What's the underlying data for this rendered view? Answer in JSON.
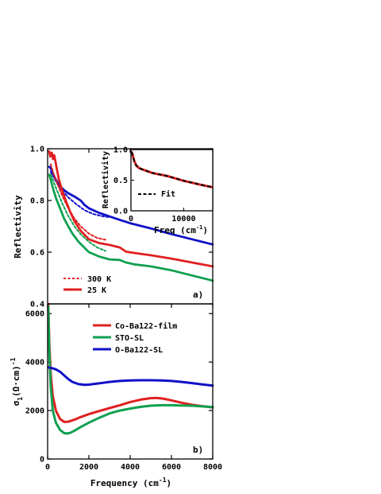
{
  "chart_data": [
    {
      "type": "line",
      "panel_label": "a)",
      "ylabel": "Reflectivity",
      "ylim": [
        0.4,
        1.0
      ],
      "yticks": [
        0.4,
        0.6,
        0.8,
        1.0
      ],
      "ytick_labels": [
        "0.4",
        "0.6",
        "0.8",
        "1.0"
      ],
      "xlim": [
        0,
        8000
      ],
      "legend": {
        "placement": "bottom-left",
        "entries": [
          "300 K",
          "25 K"
        ]
      },
      "series": [
        {
          "color": "#1010c8",
          "style": "solid",
          "temperature": "25 K",
          "x": [
            80,
            150,
            250,
            400,
            600,
            800,
            1000,
            1300,
            1600,
            1800,
            2000,
            2500,
            3000,
            3500,
            4000,
            5000,
            6000,
            7000,
            8000
          ],
          "y": [
            0.93,
            0.925,
            0.905,
            0.88,
            0.855,
            0.84,
            0.828,
            0.815,
            0.8,
            0.782,
            0.77,
            0.752,
            0.738,
            0.725,
            0.712,
            0.692,
            0.67,
            0.65,
            0.63
          ]
        },
        {
          "color": "#1010c8",
          "style": "dashed",
          "temperature": "300 K",
          "x": [
            150,
            300,
            500,
            700,
            1000,
            1400,
            1800,
            2200,
            2600,
            3000
          ],
          "y": [
            0.91,
            0.89,
            0.86,
            0.84,
            0.812,
            0.785,
            0.762,
            0.748,
            0.74,
            0.735
          ]
        },
        {
          "color": "#e02020",
          "style": "solid",
          "temperature": "25 K",
          "x": [
            80,
            130,
            200,
            260,
            320,
            380,
            450,
            550,
            700,
            900,
            1100,
            1300,
            1600,
            2000,
            2500,
            3000,
            3500,
            3800,
            4200,
            5000,
            6000,
            7000,
            8000
          ],
          "y": [
            0.99,
            0.97,
            0.985,
            0.96,
            0.975,
            0.95,
            0.92,
            0.88,
            0.84,
            0.795,
            0.755,
            0.72,
            0.683,
            0.65,
            0.635,
            0.628,
            0.618,
            0.602,
            0.597,
            0.588,
            0.575,
            0.56,
            0.545
          ]
        },
        {
          "color": "#e02020",
          "style": "dashed",
          "temperature": "300 K",
          "x": [
            150,
            300,
            500,
            700,
            1000,
            1300,
            1600,
            2000,
            2400,
            2800
          ],
          "y": [
            0.94,
            0.9,
            0.86,
            0.82,
            0.77,
            0.73,
            0.7,
            0.672,
            0.655,
            0.648
          ]
        },
        {
          "color": "#10a050",
          "style": "solid",
          "temperature": "25 K",
          "x": [
            80,
            150,
            250,
            400,
            600,
            800,
            1000,
            1200,
            1500,
            2000,
            2500,
            3000,
            3500,
            3800,
            4200,
            5000,
            6000,
            7000,
            8000
          ],
          "y": [
            0.9,
            0.88,
            0.85,
            0.81,
            0.77,
            0.73,
            0.7,
            0.672,
            0.64,
            0.6,
            0.583,
            0.572,
            0.57,
            0.56,
            0.553,
            0.545,
            0.53,
            0.51,
            0.49
          ]
        },
        {
          "color": "#10a050",
          "style": "dashed",
          "temperature": "300 K",
          "x": [
            150,
            300,
            500,
            700,
            1000,
            1300,
            1600,
            2000,
            2400,
            2800
          ],
          "y": [
            0.9,
            0.87,
            0.83,
            0.79,
            0.74,
            0.7,
            0.67,
            0.64,
            0.618,
            0.605
          ]
        }
      ]
    },
    {
      "type": "line",
      "inset": true,
      "ylabel": "Reflectivity",
      "xlabel_text": "Freq (cm",
      "xlabel_sup": "-1",
      "xlabel_close": ")",
      "xlim": [
        0,
        15500
      ],
      "ylim": [
        0.0,
        1.0
      ],
      "xticks": [
        0,
        10000
      ],
      "xtick_labels": [
        "0",
        "10000"
      ],
      "yticks": [
        0.0,
        0.5,
        1.0
      ],
      "ytick_labels": [
        "0.0",
        "0.5",
        "1.0"
      ],
      "legend": {
        "placement": "lower-left",
        "entries": [
          "Fit"
        ]
      },
      "series": [
        {
          "color": "#e02020",
          "style": "solid",
          "x": [
            100,
            300,
            600,
            1000,
            1500,
            2000,
            3000,
            4000,
            5000,
            6000,
            7000,
            8000,
            9000,
            10000,
            11000,
            12000,
            13000,
            14000,
            15500
          ],
          "y": [
            0.97,
            0.92,
            0.82,
            0.74,
            0.7,
            0.68,
            0.65,
            0.62,
            0.6,
            0.585,
            0.565,
            0.54,
            0.515,
            0.49,
            0.47,
            0.45,
            0.43,
            0.41,
            0.385
          ]
        },
        {
          "color": "#000000",
          "style": "dashed",
          "name": "Fit",
          "x": [
            100,
            300,
            600,
            1000,
            1500,
            2000,
            3000,
            4000,
            5000,
            6000,
            7000,
            8000,
            9000,
            10000,
            11000,
            12000,
            13000,
            14000,
            15500
          ],
          "y": [
            0.965,
            0.915,
            0.815,
            0.74,
            0.7,
            0.68,
            0.65,
            0.62,
            0.6,
            0.585,
            0.565,
            0.54,
            0.515,
            0.49,
            0.47,
            0.45,
            0.43,
            0.41,
            0.385
          ]
        }
      ]
    },
    {
      "type": "line",
      "panel_label": "b)",
      "ylabel_main": "σ",
      "ylabel_sub": "1",
      "ylabel_unit": "(Ω·cm)",
      "ylabel_exp": "-1",
      "xlabel_text": "Frequency (cm",
      "xlabel_sup": "-1",
      "xlabel_close": ")",
      "xlim": [
        0,
        8000
      ],
      "ylim": [
        0,
        6400
      ],
      "xticks": [
        0,
        2000,
        4000,
        6000,
        8000
      ],
      "xtick_labels": [
        "0",
        "2000",
        "4000",
        "6000",
        "8000"
      ],
      "yticks": [
        0,
        2000,
        4000,
        6000
      ],
      "ytick_labels": [
        "0",
        "2000",
        "4000",
        "6000"
      ],
      "legend": {
        "placement": "top-center"
      },
      "series": [
        {
          "name": "Co-Ba122-film",
          "color": "#e02020",
          "x": [
            30,
            80,
            150,
            250,
            400,
            600,
            800,
            1000,
            1300,
            1600,
            2000,
            2500,
            3000,
            3500,
            4000,
            4500,
            5000,
            5300,
            5600,
            6000,
            6500,
            7000,
            7500,
            8000
          ],
          "y": [
            6400,
            4800,
            3500,
            2600,
            2000,
            1650,
            1530,
            1540,
            1620,
            1730,
            1850,
            1980,
            2100,
            2220,
            2350,
            2450,
            2510,
            2520,
            2490,
            2420,
            2320,
            2240,
            2180,
            2130
          ]
        },
        {
          "name": "STO-SL",
          "color": "#10a050",
          "x": [
            30,
            80,
            150,
            250,
            400,
            600,
            800,
            950,
            1100,
            1300,
            1600,
            2000,
            2500,
            3000,
            3500,
            4000,
            4500,
            5000,
            5500,
            6000,
            6500,
            7000,
            7500,
            8000
          ],
          "y": [
            6300,
            4500,
            3000,
            2000,
            1500,
            1200,
            1070,
            1050,
            1080,
            1170,
            1320,
            1500,
            1700,
            1880,
            2000,
            2080,
            2150,
            2200,
            2220,
            2220,
            2210,
            2200,
            2170,
            2140
          ]
        },
        {
          "name": "O-Ba122-SL",
          "color": "#1010c8",
          "x": [
            30,
            200,
            400,
            600,
            800,
            1000,
            1200,
            1500,
            1800,
            2000,
            2500,
            3000,
            3500,
            4000,
            4500,
            5000,
            5500,
            6000,
            6500,
            7000,
            7500,
            8000
          ],
          "y": [
            3780,
            3750,
            3700,
            3600,
            3450,
            3300,
            3180,
            3090,
            3060,
            3070,
            3120,
            3180,
            3220,
            3240,
            3250,
            3250,
            3240,
            3220,
            3180,
            3130,
            3080,
            3030
          ]
        }
      ]
    }
  ]
}
